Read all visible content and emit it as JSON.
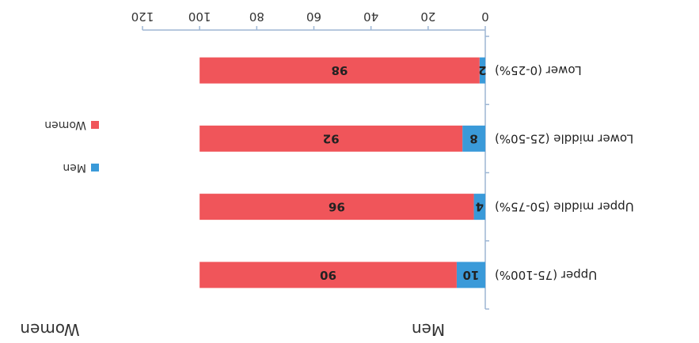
{
  "header": {
    "left": "Men",
    "right": "Women"
  },
  "chart_data": {
    "type": "bar",
    "orientation": "horizontal",
    "stacked": true,
    "rotated_180": true,
    "categories": [
      "Lower (0-25%)",
      "Lower middle (25-50%)",
      "Upper middle (50-75%)",
      "Upper (75-100%)"
    ],
    "series": [
      {
        "name": "Men",
        "values": [
          2,
          8,
          4,
          10
        ],
        "color": "#3a9ad9"
      },
      {
        "name": "Women",
        "values": [
          98,
          92,
          96,
          90
        ],
        "color": "#f0555a"
      }
    ],
    "xlim": [
      0,
      120
    ],
    "xticks": [
      0,
      20,
      40,
      60,
      80,
      100,
      120
    ],
    "legend_position": "right",
    "grid": false
  }
}
